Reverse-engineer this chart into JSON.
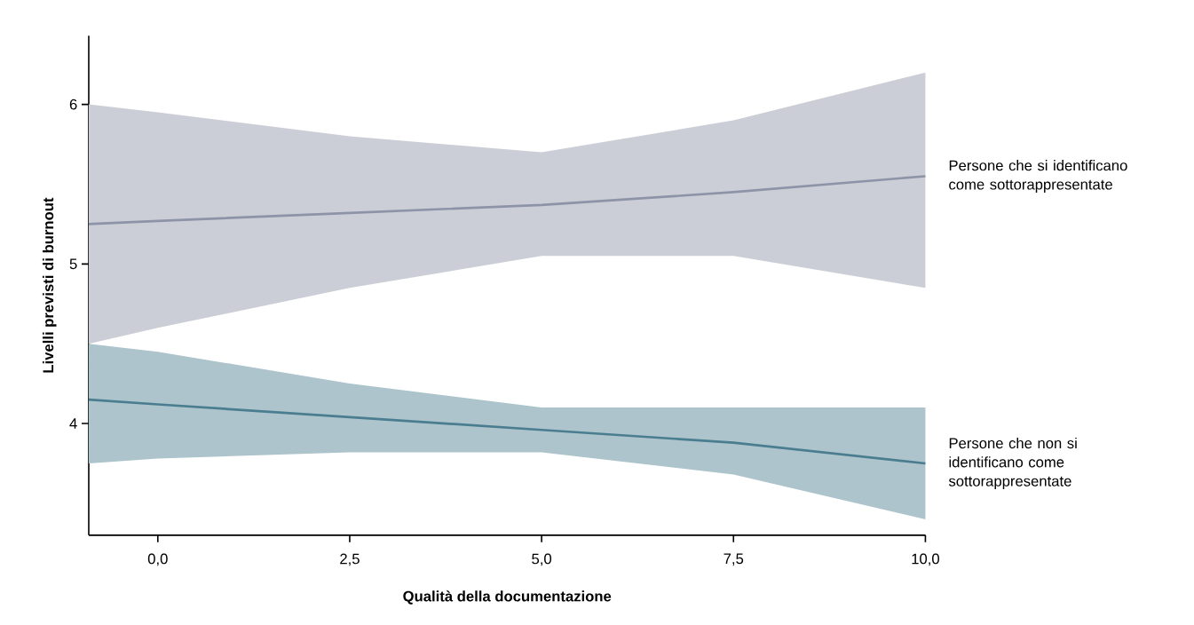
{
  "chart_data": {
    "type": "line",
    "xlabel": "Qualità della documentazione",
    "ylabel": "Livelli previsti di burnout",
    "x": [
      -0.9,
      0,
      2.5,
      5,
      7.5,
      10
    ],
    "series": [
      {
        "name": "Persone che si identificano come sottorappresentate",
        "color": "#8e94a8",
        "values": [
          5.25,
          5.27,
          5.32,
          5.37,
          5.45,
          5.55
        ],
        "lower": [
          4.5,
          4.6,
          4.85,
          5.05,
          5.05,
          4.85
        ],
        "upper": [
          6.0,
          5.95,
          5.8,
          5.7,
          5.9,
          6.2
        ]
      },
      {
        "name": "Persone che non si identificano come sottorappresentate",
        "color": "#4a7d8f",
        "values": [
          4.15,
          4.12,
          4.04,
          3.96,
          3.88,
          3.75
        ],
        "lower": [
          3.75,
          3.78,
          3.82,
          3.82,
          3.68,
          3.4
        ],
        "upper": [
          4.5,
          4.45,
          4.25,
          4.1,
          4.1,
          4.1
        ]
      }
    ],
    "xlim": [
      -0.9,
      10
    ],
    "ylim": [
      3.3,
      6.43
    ],
    "xticks": [
      {
        "value": 0,
        "label": "0,0"
      },
      {
        "value": 2.5,
        "label": "2,5"
      },
      {
        "value": 5,
        "label": "5,0"
      },
      {
        "value": 7.5,
        "label": "7,5"
      },
      {
        "value": 10,
        "label": "10,0"
      }
    ],
    "yticks": [
      4,
      5,
      6
    ],
    "grid": false,
    "legend": false
  }
}
